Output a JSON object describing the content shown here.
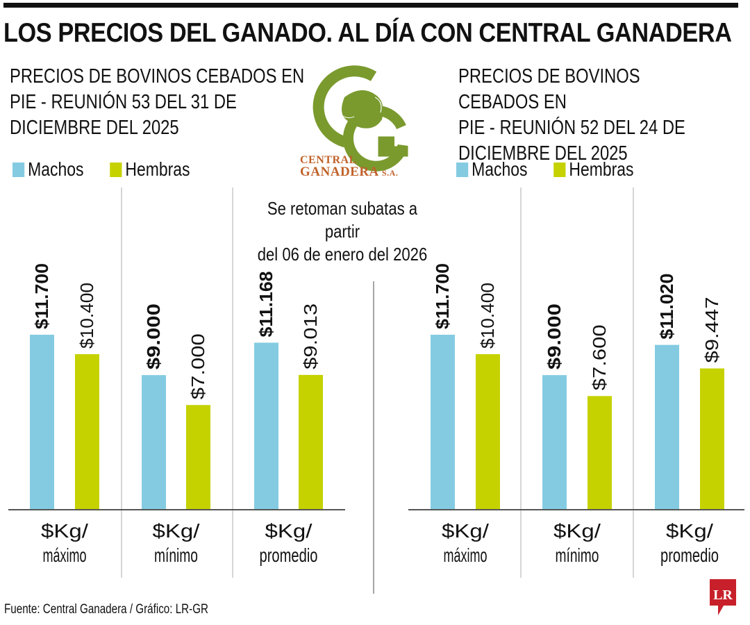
{
  "header": {
    "title": "LOS PRECIOS DEL GANADO. AL DÍA CON CENTRAL GANADERA"
  },
  "logo": {
    "line1": "CENTRAL",
    "line2": "GANADERA",
    "suffix": "S.A.",
    "green": "#7a9a2e",
    "orange": "#c0622a"
  },
  "note": "Se retoman subatas a partir\ndel 06 de enero del 2026",
  "legend": {
    "machos": "Machos",
    "hembras": "Hembras"
  },
  "colors": {
    "machos": "#84cbe2",
    "hembras": "#c5d200"
  },
  "source": "Fuente: Central Ganadera / Gráfico: LR-GR",
  "badge": "LR",
  "chart_data": [
    {
      "type": "bar",
      "title": "PRECIOS DE BOVINOS CEBADOS EN\nPIE - REUNIÓN 53 DEL 31 DE\nDICIEMBRE DEL 2025",
      "categories": [
        "$Kg/\nmáximo",
        "$Kg/\nmínimo",
        "$Kg/\npromedio"
      ],
      "series": [
        {
          "name": "Machos",
          "values": [
            11700,
            9000,
            11168
          ],
          "labels": [
            "$11.700",
            "$9.000",
            "$11.168"
          ]
        },
        {
          "name": "Hembras",
          "values": [
            10400,
            7000,
            9013
          ],
          "labels": [
            "$10.400",
            "$7.000",
            "$9.013"
          ]
        }
      ],
      "xlabel": "",
      "ylabel": "",
      "ylim": [
        0,
        11700
      ],
      "grid": false,
      "legend": "top-left"
    },
    {
      "type": "bar",
      "title": "PRECIOS DE BOVINOS CEBADOS EN\nPIE - REUNIÓN 52 DEL 24 DE\nDICIEMBRE DEL 2025",
      "categories": [
        "$Kg/\nmáximo",
        "$Kg/\nmínimo",
        "$Kg/\npromedio"
      ],
      "series": [
        {
          "name": "Machos",
          "values": [
            11700,
            9000,
            11020
          ],
          "labels": [
            "$11.700",
            "$9.000",
            "$11.020"
          ]
        },
        {
          "name": "Hembras",
          "values": [
            10400,
            7600,
            9447
          ],
          "labels": [
            "$10.400",
            "$7.600",
            "$9.447"
          ]
        }
      ],
      "xlabel": "",
      "ylabel": "",
      "ylim": [
        0,
        11700
      ],
      "grid": false,
      "legend": "top-left"
    }
  ]
}
